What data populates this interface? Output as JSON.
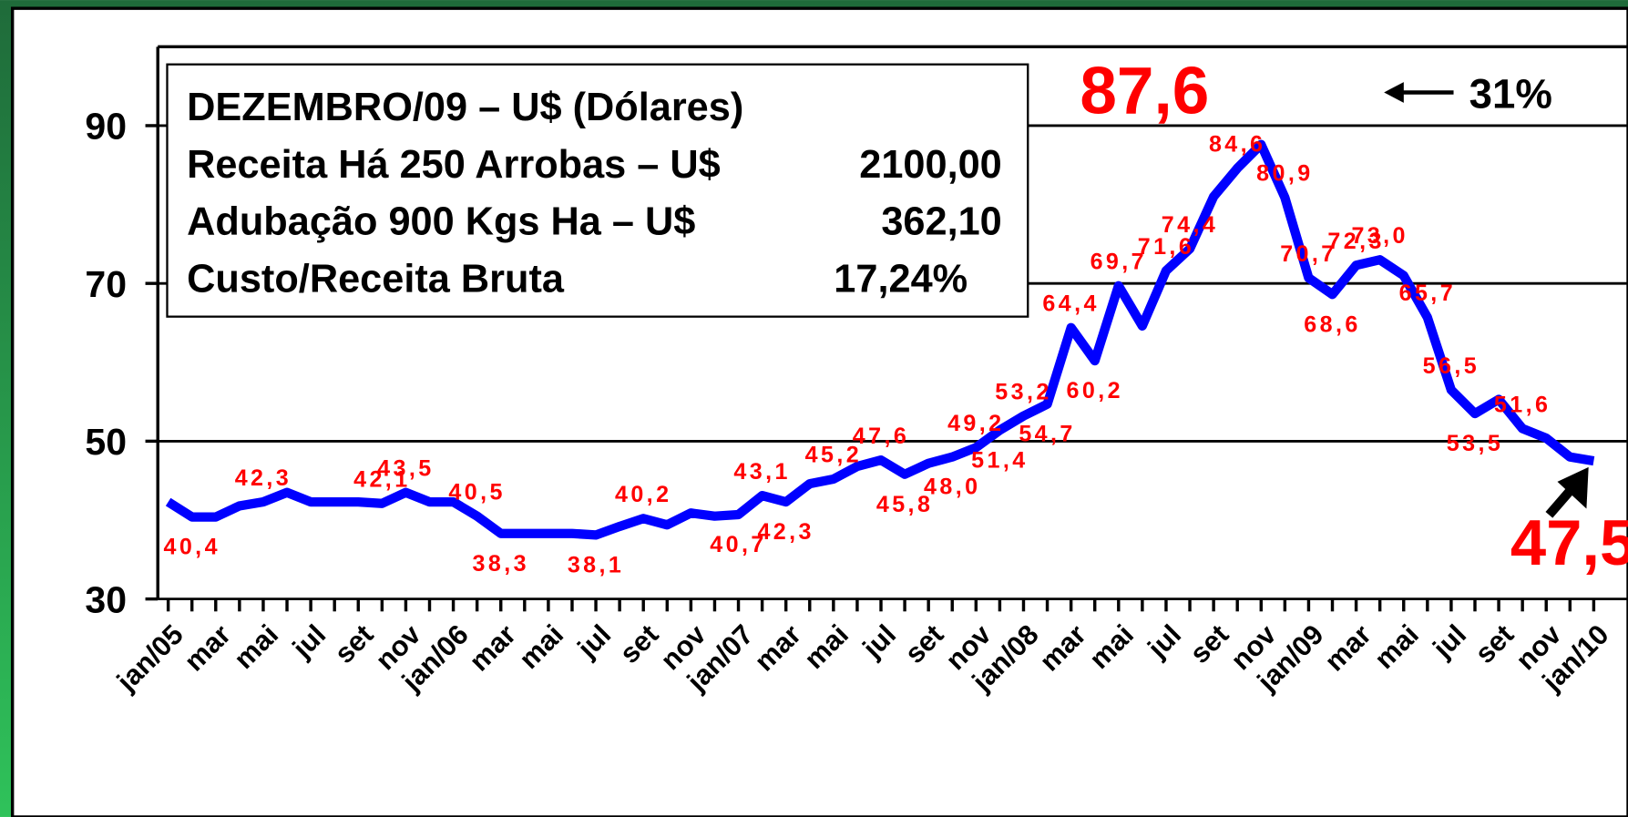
{
  "chart_data": {
    "type": "line",
    "info_box": {
      "title": "DEZEMBRO/09 – U$ (Dólares)",
      "rows": [
        [
          "Receita Há 250 Arrobas – U$",
          "2100,00"
        ],
        [
          "Adubação 900 Kgs Ha – U$",
          "362,10"
        ],
        [
          "Custo/Receita  Bruta",
          "17,24%"
        ]
      ]
    },
    "annotation": "31%",
    "categories": [
      "jan/05",
      null,
      "mar",
      null,
      "mai",
      null,
      "jul",
      null,
      "set",
      null,
      "nov",
      null,
      "jan/06",
      null,
      "mar",
      null,
      "mai",
      null,
      "jul",
      null,
      "set",
      null,
      "nov",
      null,
      "jan/07",
      null,
      "mar",
      null,
      "mai",
      null,
      "jul",
      null,
      "set",
      null,
      "nov",
      null,
      "jan/08",
      null,
      "mar",
      null,
      "mai",
      null,
      "jul",
      null,
      "set",
      null,
      "nov",
      null,
      "jan/09",
      null,
      "mar",
      null,
      "mai",
      null,
      "jul",
      null,
      "set",
      null,
      "nov",
      null,
      "jan/10"
    ],
    "series": [
      {
        "color": "#0000ff",
        "values": [
          42.3,
          40.4,
          40.4,
          41.8,
          42.3,
          43.5,
          42.3,
          42.3,
          42.3,
          42.1,
          43.5,
          42.3,
          42.3,
          40.5,
          38.3,
          38.3,
          38.3,
          38.3,
          38.1,
          39.2,
          40.2,
          39.4,
          40.9,
          40.5,
          40.7,
          43.1,
          42.3,
          44.6,
          45.2,
          46.8,
          47.6,
          45.8,
          47.2,
          48.0,
          49.2,
          51.4,
          53.2,
          54.7,
          64.4,
          60.2,
          69.7,
          64.6,
          71.6,
          74.4,
          81.0,
          84.6,
          87.6,
          80.9,
          70.7,
          68.6,
          72.3,
          73.0,
          71.0,
          65.7,
          56.5,
          53.5,
          55.3,
          51.6,
          50.4,
          48.0,
          47.5
        ],
        "value_labels": [
          null,
          "40,4",
          null,
          null,
          "42,3",
          null,
          null,
          null,
          null,
          "42,1",
          "43,5",
          null,
          null,
          "40,5",
          "38,3",
          null,
          null,
          null,
          "38,1",
          null,
          "40,2",
          null,
          null,
          null,
          "40,7",
          "43,1",
          "42,3",
          null,
          "45,2",
          null,
          "47,6",
          "45,8",
          null,
          "48,0",
          "49,2",
          "51,4",
          "53,2",
          "54,7",
          "64,4",
          "60,2",
          "69,7",
          null,
          "71,6",
          "74,4",
          null,
          "84,6",
          "87,6",
          "80,9",
          "70,7",
          "68,6",
          "72,3",
          "73,0",
          null,
          "65,7",
          "56,5",
          "53,5",
          null,
          "51,6",
          null,
          null,
          "47,5"
        ]
      }
    ],
    "ylim": [
      30,
      100
    ],
    "yticks": [
      30,
      50,
      70,
      90
    ],
    "grid": true,
    "label_color": "#ff0000"
  }
}
